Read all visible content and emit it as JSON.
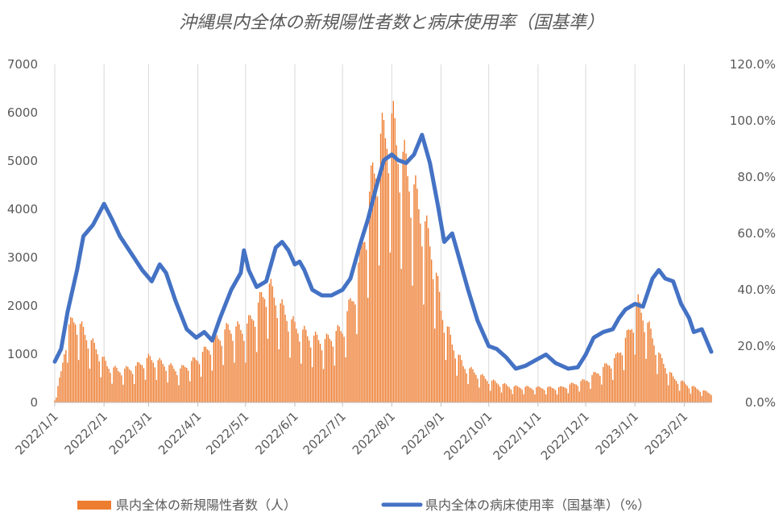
{
  "chart_data": {
    "type": "bar+line",
    "title": "沖縄県内全体の新規陽性者数と病床使用率（国基準）",
    "legend_position": "bottom",
    "grid": "vertical",
    "x_tick_labels": [
      "2022/1/1",
      "2022/2/1",
      "2022/3/1",
      "2022/4/1",
      "2022/5/1",
      "2022/6/1",
      "2022/7/1",
      "2022/8/1",
      "2022/9/1",
      "2022/10/1",
      "2022/11/1",
      "2022/12/1",
      "2023/1/1",
      "2023/2/1"
    ],
    "x_range": [
      "2022/1/1",
      "2023/2/18"
    ],
    "y_left": {
      "ticks": [
        "0",
        "1000",
        "2000",
        "3000",
        "4000",
        "5000",
        "6000",
        "7000"
      ],
      "ylim": [
        0,
        7000
      ]
    },
    "y_right": {
      "ticks": [
        "0.0%",
        "20.0%",
        "40.0%",
        "60.0%",
        "80.0%",
        "100.0%",
        "120.0%"
      ],
      "ylim": [
        0,
        120
      ]
    },
    "series": [
      {
        "name": "県内全体の新規陽性者数（人）",
        "type": "bar",
        "axis": "left",
        "color": "#ED7D31",
        "frequency": "daily",
        "anchors": [
          [
            "2022/1/1",
            50
          ],
          [
            "2022/1/5",
            600
          ],
          [
            "2022/1/9",
            1500
          ],
          [
            "2022/1/14",
            1700
          ],
          [
            "2022/1/20",
            1400
          ],
          [
            "2022/1/27",
            1100
          ],
          [
            "2022/2/3",
            750
          ],
          [
            "2022/2/10",
            650
          ],
          [
            "2022/2/20",
            700
          ],
          [
            "2022/3/1",
            900
          ],
          [
            "2022/3/10",
            800
          ],
          [
            "2022/3/20",
            650
          ],
          [
            "2022/4/1",
            900
          ],
          [
            "2022/4/10",
            1200
          ],
          [
            "2022/4/20",
            1500
          ],
          [
            "2022/5/1",
            1500
          ],
          [
            "2022/5/8",
            1900
          ],
          [
            "2022/5/15",
            2400
          ],
          [
            "2022/5/22",
            2000
          ],
          [
            "2022/6/1",
            1550
          ],
          [
            "2022/6/10",
            1350
          ],
          [
            "2022/6/20",
            1250
          ],
          [
            "2022/7/1",
            1500
          ],
          [
            "2022/7/8",
            2200
          ],
          [
            "2022/7/15",
            3500
          ],
          [
            "2022/7/20",
            4600
          ],
          [
            "2022/7/25",
            5300
          ],
          [
            "2022/8/1",
            5700
          ],
          [
            "2022/8/5",
            5200
          ],
          [
            "2022/8/12",
            4600
          ],
          [
            "2022/8/20",
            3800
          ],
          [
            "2022/8/27",
            3000
          ],
          [
            "2022/9/1",
            1900
          ],
          [
            "2022/9/8",
            1200
          ],
          [
            "2022/9/15",
            750
          ],
          [
            "2022/10/1",
            450
          ],
          [
            "2022/10/15",
            320
          ],
          [
            "2022/11/1",
            300
          ],
          [
            "2022/11/15",
            300
          ],
          [
            "2022/12/1",
            450
          ],
          [
            "2022/12/10",
            650
          ],
          [
            "2022/12/20",
            900
          ],
          [
            "2022/12/28",
            1400
          ],
          [
            "2023/1/3",
            2000
          ],
          [
            "2023/1/10",
            1500
          ],
          [
            "2023/1/17",
            900
          ],
          [
            "2023/1/25",
            500
          ],
          [
            "2023/2/5",
            330
          ],
          [
            "2023/2/18",
            180
          ]
        ]
      },
      {
        "name": "県内全体の病床使用率（国基準）（%）",
        "type": "line",
        "axis": "right",
        "color": "#4472C4",
        "frequency": "daily",
        "anchors": [
          [
            "2022/1/1",
            14.5
          ],
          [
            "2022/1/5",
            19
          ],
          [
            "2022/1/9",
            32
          ],
          [
            "2022/1/15",
            47
          ],
          [
            "2022/1/19",
            59
          ],
          [
            "2022/1/25",
            63
          ],
          [
            "2022/2/1",
            70.5
          ],
          [
            "2022/2/6",
            65
          ],
          [
            "2022/2/11",
            59
          ],
          [
            "2022/2/18",
            53
          ],
          [
            "2022/2/25",
            47
          ],
          [
            "2022/3/3",
            43
          ],
          [
            "2022/3/8",
            49
          ],
          [
            "2022/3/12",
            46
          ],
          [
            "2022/3/18",
            36
          ],
          [
            "2022/3/25",
            26
          ],
          [
            "2022/3/31",
            23
          ],
          [
            "2022/4/5",
            25
          ],
          [
            "2022/4/10",
            22
          ],
          [
            "2022/4/15",
            30
          ],
          [
            "2022/4/22",
            40
          ],
          [
            "2022/4/28",
            46
          ],
          [
            "2022/4/30",
            54
          ],
          [
            "2022/5/3",
            47
          ],
          [
            "2022/5/8",
            41
          ],
          [
            "2022/5/14",
            43
          ],
          [
            "2022/5/20",
            55
          ],
          [
            "2022/5/24",
            57
          ],
          [
            "2022/5/28",
            54
          ],
          [
            "2022/6/1",
            49
          ],
          [
            "2022/6/4",
            50
          ],
          [
            "2022/6/7",
            47
          ],
          [
            "2022/6/12",
            40
          ],
          [
            "2022/6/18",
            38
          ],
          [
            "2022/6/24",
            38
          ],
          [
            "2022/7/1",
            40
          ],
          [
            "2022/7/6",
            44
          ],
          [
            "2022/7/12",
            56
          ],
          [
            "2022/7/17",
            65
          ],
          [
            "2022/7/22",
            76
          ],
          [
            "2022/7/27",
            86
          ],
          [
            "2022/8/1",
            88
          ],
          [
            "2022/8/5",
            86
          ],
          [
            "2022/8/10",
            85
          ],
          [
            "2022/8/15",
            88
          ],
          [
            "2022/8/20",
            95
          ],
          [
            "2022/8/25",
            85
          ],
          [
            "2022/8/30",
            70
          ],
          [
            "2022/9/3",
            57
          ],
          [
            "2022/9/8",
            60
          ],
          [
            "2022/9/12",
            52
          ],
          [
            "2022/9/18",
            40
          ],
          [
            "2022/9/24",
            29
          ],
          [
            "2022/10/1",
            20
          ],
          [
            "2022/10/6",
            19
          ],
          [
            "2022/10/12",
            16
          ],
          [
            "2022/10/18",
            12
          ],
          [
            "2022/10/24",
            13
          ],
          [
            "2022/11/1",
            15.5
          ],
          [
            "2022/11/6",
            17
          ],
          [
            "2022/11/12",
            14
          ],
          [
            "2022/11/20",
            12
          ],
          [
            "2022/11/26",
            12.5
          ],
          [
            "2022/12/1",
            17
          ],
          [
            "2022/12/6",
            23
          ],
          [
            "2022/12/12",
            25
          ],
          [
            "2022/12/18",
            26
          ],
          [
            "2022/12/22",
            30
          ],
          [
            "2022/12/26",
            33
          ],
          [
            "2023/1/1",
            35
          ],
          [
            "2023/1/6",
            34
          ],
          [
            "2023/1/12",
            44
          ],
          [
            "2023/1/16",
            47
          ],
          [
            "2023/1/20",
            44
          ],
          [
            "2023/1/25",
            43
          ],
          [
            "2023/1/30",
            35
          ],
          [
            "2023/2/4",
            30
          ],
          [
            "2023/2/7",
            25
          ],
          [
            "2023/2/12",
            26
          ],
          [
            "2023/2/15",
            22
          ],
          [
            "2023/2/18",
            18
          ]
        ]
      }
    ]
  }
}
